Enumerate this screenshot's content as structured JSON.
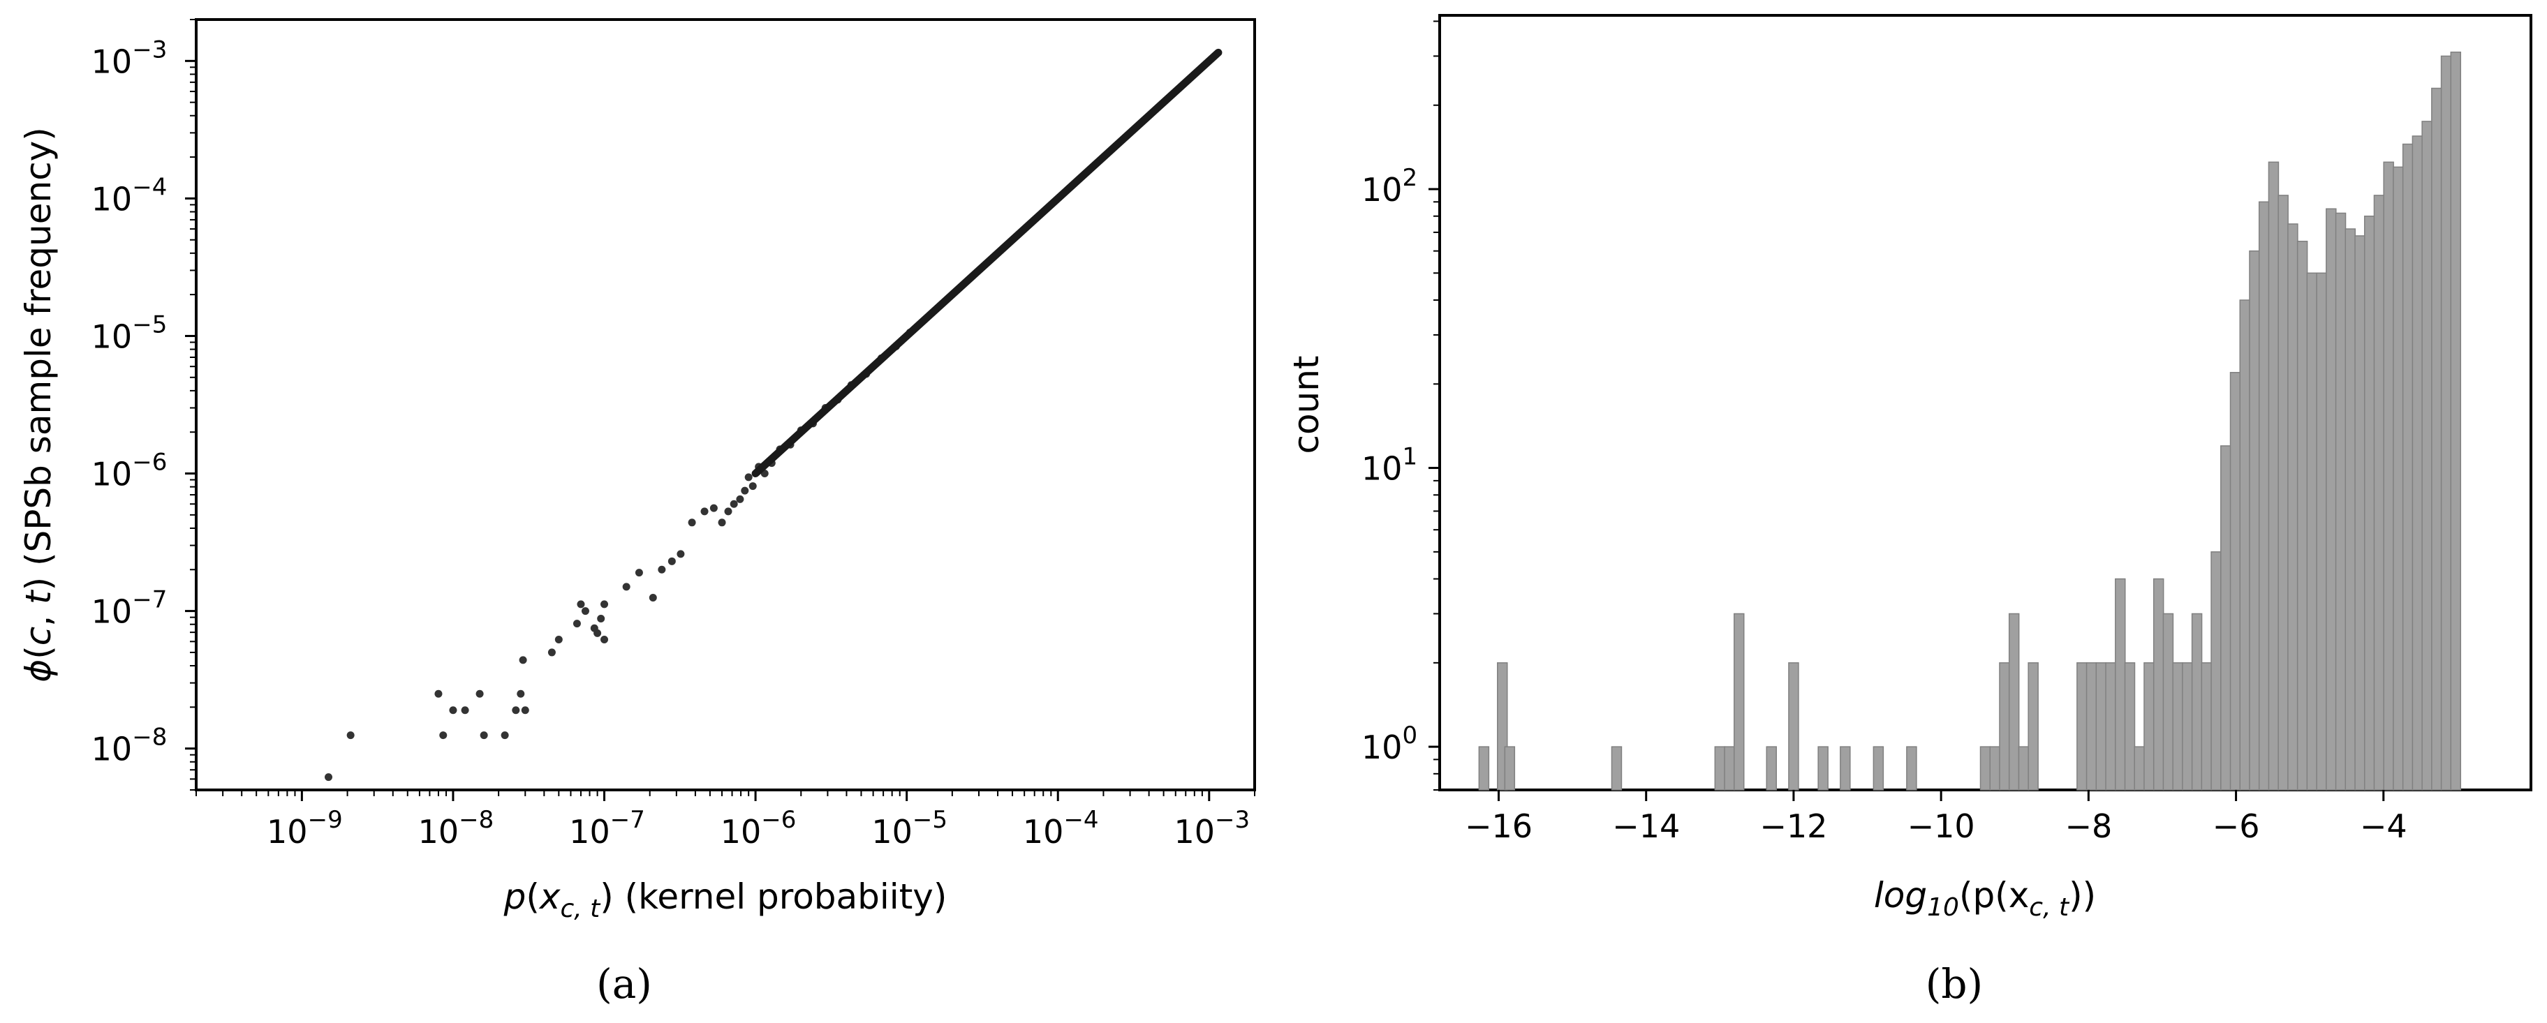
{
  "chart_data": [
    {
      "type": "scatter",
      "panel_label": "(a)",
      "xlabel": "p(x_{c,t}) (kernel probabiity)",
      "ylabel": "ϕ(c, t) (SPSb sample frequency)",
      "x_scale": "log",
      "y_scale": "log",
      "xlim": [
        2e-10,
        0.002
      ],
      "ylim": [
        5e-09,
        0.002
      ],
      "x_ticks": [
        {
          "value": 1e-09,
          "base": "10",
          "exp": "−9"
        },
        {
          "value": 1e-08,
          "base": "10",
          "exp": "−8"
        },
        {
          "value": 1e-07,
          "base": "10",
          "exp": "−7"
        },
        {
          "value": 1e-06,
          "base": "10",
          "exp": "−6"
        },
        {
          "value": 1e-05,
          "base": "10",
          "exp": "−5"
        },
        {
          "value": 0.0001,
          "base": "10",
          "exp": "−4"
        },
        {
          "value": 0.001,
          "base": "10",
          "exp": "−3"
        }
      ],
      "y_ticks": [
        {
          "value": 1e-08,
          "base": "10",
          "exp": "−8"
        },
        {
          "value": 1e-07,
          "base": "10",
          "exp": "−7"
        },
        {
          "value": 1e-06,
          "base": "10",
          "exp": "−6"
        },
        {
          "value": 1e-05,
          "base": "10",
          "exp": "−5"
        },
        {
          "value": 0.0001,
          "base": "10",
          "exp": "−4"
        },
        {
          "value": 0.001,
          "base": "10",
          "exp": "−3"
        }
      ],
      "grid": false,
      "points": [
        {
          "x": 1.5e-09,
          "y": 6.2e-09
        },
        {
          "x": 2.1e-09,
          "y": 1.25e-08
        },
        {
          "x": 8e-09,
          "y": 2.5e-08
        },
        {
          "x": 8.6e-09,
          "y": 1.25e-08
        },
        {
          "x": 1e-08,
          "y": 1.9e-08
        },
        {
          "x": 1.2e-08,
          "y": 1.9e-08
        },
        {
          "x": 1.5e-08,
          "y": 2.5e-08
        },
        {
          "x": 1.6e-08,
          "y": 1.25e-08
        },
        {
          "x": 2.2e-08,
          "y": 1.25e-08
        },
        {
          "x": 2.6e-08,
          "y": 1.9e-08
        },
        {
          "x": 2.8e-08,
          "y": 2.5e-08
        },
        {
          "x": 3e-08,
          "y": 1.9e-08
        },
        {
          "x": 2.9e-08,
          "y": 4.4e-08
        },
        {
          "x": 4.5e-08,
          "y": 5e-08
        },
        {
          "x": 5e-08,
          "y": 6.2e-08
        },
        {
          "x": 6.6e-08,
          "y": 8.1e-08
        },
        {
          "x": 7e-08,
          "y": 1.12e-07
        },
        {
          "x": 7.5e-08,
          "y": 1e-07
        },
        {
          "x": 8.6e-08,
          "y": 7.5e-08
        },
        {
          "x": 9e-08,
          "y": 6.9e-08
        },
        {
          "x": 9.5e-08,
          "y": 8.8e-08
        },
        {
          "x": 1e-07,
          "y": 6.2e-08
        },
        {
          "x": 1e-07,
          "y": 1.12e-07
        },
        {
          "x": 1.4e-07,
          "y": 1.5e-07
        },
        {
          "x": 1.7e-07,
          "y": 1.9e-07
        },
        {
          "x": 2.1e-07,
          "y": 1.25e-07
        },
        {
          "x": 2.4e-07,
          "y": 2e-07
        },
        {
          "x": 2.8e-07,
          "y": 2.3e-07
        },
        {
          "x": 3.2e-07,
          "y": 2.6e-07
        },
        {
          "x": 3.8e-07,
          "y": 4.4e-07
        },
        {
          "x": 4.6e-07,
          "y": 5.3e-07
        },
        {
          "x": 5.3e-07,
          "y": 5.6e-07
        },
        {
          "x": 6e-07,
          "y": 4.4e-07
        },
        {
          "x": 6.6e-07,
          "y": 5.3e-07
        },
        {
          "x": 7.2e-07,
          "y": 6e-07
        },
        {
          "x": 7.9e-07,
          "y": 6.5e-07
        },
        {
          "x": 8.5e-07,
          "y": 7.5e-07
        },
        {
          "x": 9e-07,
          "y": 9.4e-07
        },
        {
          "x": 9.6e-07,
          "y": 8.1e-07
        },
        {
          "x": 1.05e-06,
          "y": 1.12e-06
        },
        {
          "x": 1.15e-06,
          "y": 1e-06
        },
        {
          "x": 1.28e-06,
          "y": 1.19e-06
        },
        {
          "x": 1.45e-06,
          "y": 1.5e-06
        },
        {
          "x": 1.7e-06,
          "y": 1.62e-06
        },
        {
          "x": 2e-06,
          "y": 2.06e-06
        },
        {
          "x": 2.4e-06,
          "y": 2.31e-06
        },
        {
          "x": 2.9e-06,
          "y": 3e-06
        },
        {
          "x": 3.5e-06,
          "y": 3.44e-06
        },
        {
          "x": 4.3e-06,
          "y": 4.4e-06
        },
        {
          "x": 5.4e-06,
          "y": 5.3e-06
        },
        {
          "x": 6.8e-06,
          "y": 6.9e-06
        },
        {
          "x": 8.5e-06,
          "y": 8.4e-06
        },
        {
          "x": 1.05e-05,
          "y": 1.06e-05
        }
      ],
      "dense_line": {
        "x_start": 1e-06,
        "x_end": 0.00115,
        "y_start": 1e-06,
        "y_end": 0.00115
      }
    },
    {
      "type": "bar",
      "subtype": "histogram",
      "panel_label": "(b)",
      "xlabel": "log10(p(x_{c,t}))",
      "xlabel_parts": {
        "pre": "log",
        "sub": "10",
        "post": "(p(x",
        "sub2": "c, t",
        "end": "))"
      },
      "ylabel": "count",
      "y_scale": "log",
      "xlim": [
        -16.8,
        -2.0
      ],
      "ylim": [
        0.7,
        420
      ],
      "x_ticks": [
        {
          "value": -16,
          "label": "−16"
        },
        {
          "value": -14,
          "label": "−14"
        },
        {
          "value": -12,
          "label": "−12"
        },
        {
          "value": -10,
          "label": "−10"
        },
        {
          "value": -8,
          "label": "−8"
        },
        {
          "value": -6,
          "label": "−6"
        },
        {
          "value": -4,
          "label": "−4"
        }
      ],
      "y_ticks": [
        {
          "value": 1,
          "base": "10",
          "exp": "0"
        },
        {
          "value": 10,
          "base": "10",
          "exp": "1"
        },
        {
          "value": 100,
          "base": "10",
          "exp": "2"
        }
      ],
      "grid": false,
      "bin_width": 0.1325,
      "bins": [
        {
          "x": -16.2,
          "count": 1
        },
        {
          "x": -15.95,
          "count": 2
        },
        {
          "x": -15.85,
          "count": 1
        },
        {
          "x": -14.4,
          "count": 1
        },
        {
          "x": -13.0,
          "count": 1
        },
        {
          "x": -12.87,
          "count": 1
        },
        {
          "x": -12.74,
          "count": 3
        },
        {
          "x": -12.3,
          "count": 1
        },
        {
          "x": -12.0,
          "count": 2
        },
        {
          "x": -11.6,
          "count": 1
        },
        {
          "x": -11.3,
          "count": 1
        },
        {
          "x": -10.85,
          "count": 1
        },
        {
          "x": -10.4,
          "count": 1
        },
        {
          "x": -9.4,
          "count": 1
        },
        {
          "x": -9.27,
          "count": 1
        },
        {
          "x": -9.14,
          "count": 2
        },
        {
          "x": -9.01,
          "count": 3
        },
        {
          "x": -8.88,
          "count": 1
        },
        {
          "x": -8.75,
          "count": 2
        },
        {
          "x": -8.09,
          "count": 2
        },
        {
          "x": -7.96,
          "count": 2
        },
        {
          "x": -7.83,
          "count": 2
        },
        {
          "x": -7.7,
          "count": 2
        },
        {
          "x": -7.57,
          "count": 4
        },
        {
          "x": -7.44,
          "count": 2
        },
        {
          "x": -7.31,
          "count": 1
        },
        {
          "x": -7.18,
          "count": 2
        },
        {
          "x": -7.05,
          "count": 4
        },
        {
          "x": -6.92,
          "count": 3
        },
        {
          "x": -6.79,
          "count": 2
        },
        {
          "x": -6.66,
          "count": 2
        },
        {
          "x": -6.53,
          "count": 3
        },
        {
          "x": -6.4,
          "count": 2
        },
        {
          "x": -6.27,
          "count": 5
        },
        {
          "x": -6.14,
          "count": 12
        },
        {
          "x": -6.01,
          "count": 22
        },
        {
          "x": -5.88,
          "count": 40
        },
        {
          "x": -5.75,
          "count": 60
        },
        {
          "x": -5.62,
          "count": 90
        },
        {
          "x": -5.49,
          "count": 125
        },
        {
          "x": -5.36,
          "count": 95
        },
        {
          "x": -5.23,
          "count": 75
        },
        {
          "x": -5.1,
          "count": 65
        },
        {
          "x": -4.97,
          "count": 50
        },
        {
          "x": -4.84,
          "count": 50
        },
        {
          "x": -4.71,
          "count": 85
        },
        {
          "x": -4.58,
          "count": 82
        },
        {
          "x": -4.45,
          "count": 72
        },
        {
          "x": -4.32,
          "count": 68
        },
        {
          "x": -4.19,
          "count": 80
        },
        {
          "x": -4.06,
          "count": 95
        },
        {
          "x": -3.93,
          "count": 125
        },
        {
          "x": -3.8,
          "count": 120
        },
        {
          "x": -3.67,
          "count": 145
        },
        {
          "x": -3.54,
          "count": 155
        },
        {
          "x": -3.41,
          "count": 175
        },
        {
          "x": -3.28,
          "count": 230
        },
        {
          "x": -3.15,
          "count": 300
        },
        {
          "x": -3.02,
          "count": 310
        }
      ],
      "bar_color": "#a0a0a0",
      "edge_color": "#808080"
    }
  ]
}
